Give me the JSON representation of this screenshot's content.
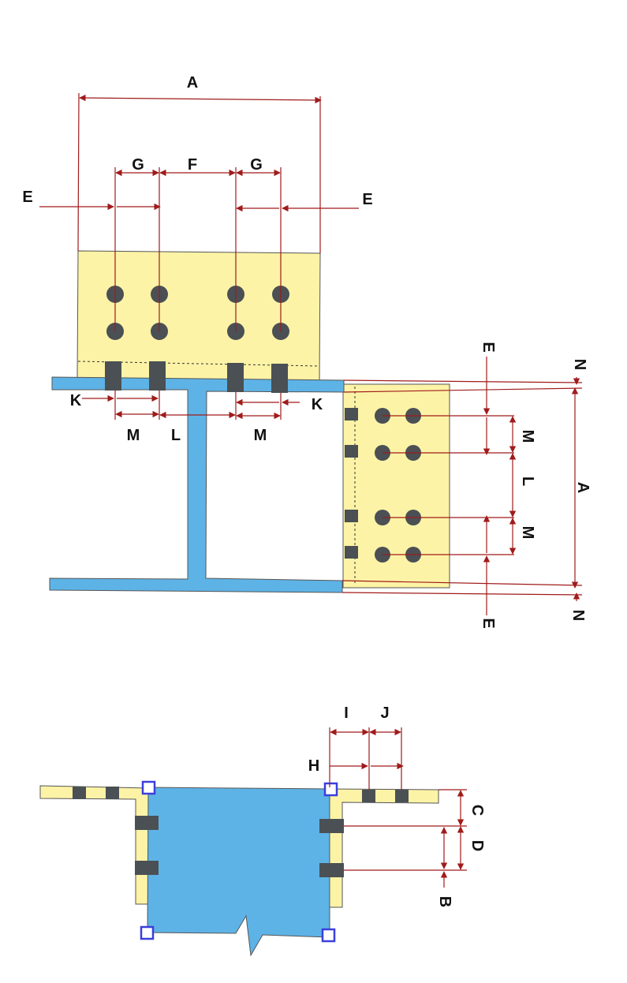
{
  "colors": {
    "plate": "#FDF3A6",
    "steel": "#5EB3E6",
    "bolt": "#4A5054",
    "dimension": "#A01B1B",
    "anchor": "#3A3FDC"
  },
  "labels": {
    "A": "A",
    "B": "B",
    "C": "C",
    "D": "D",
    "E": "E",
    "F": "F",
    "G": "G",
    "H": "H",
    "I": "I",
    "J": "J",
    "K": "K",
    "L": "L",
    "M": "M",
    "N": "N"
  }
}
